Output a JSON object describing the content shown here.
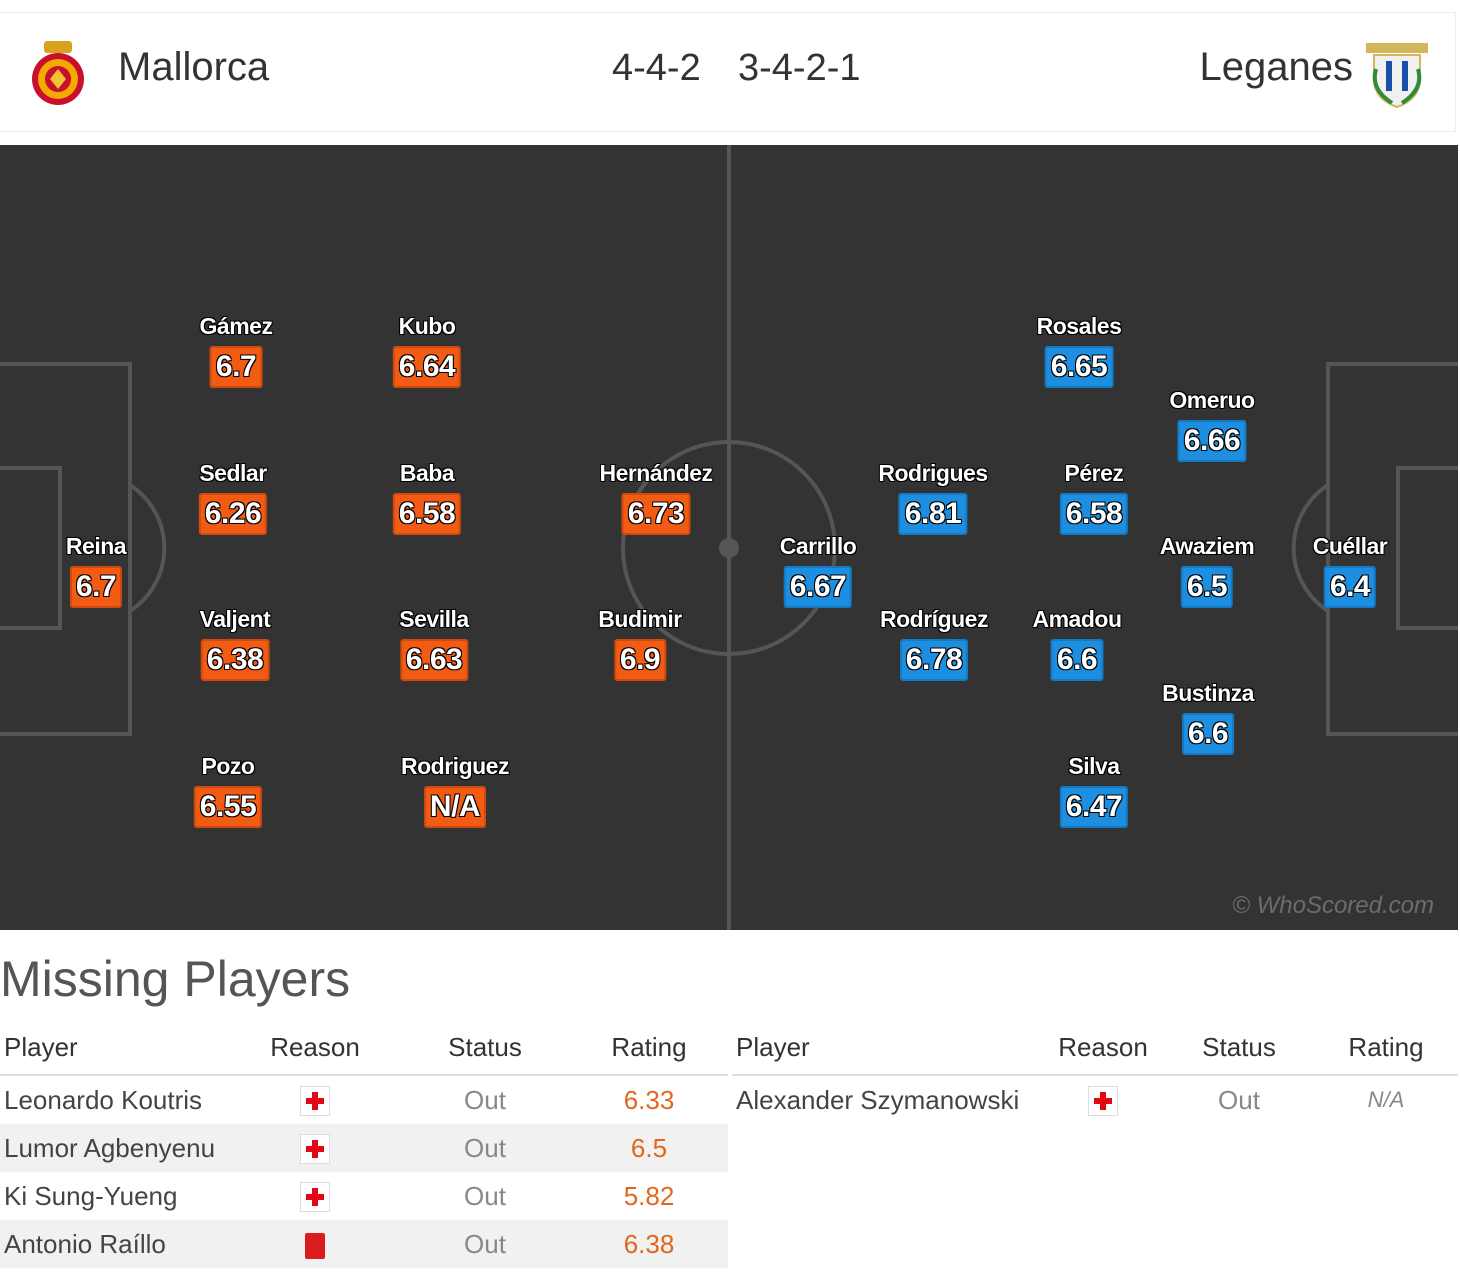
{
  "header": {
    "home_team": "Mallorca",
    "home_formation": "4-4-2",
    "away_formation": "3-4-2-1",
    "away_team": "Leganes"
  },
  "colors": {
    "home": "#f25b14",
    "away": "#1e8fe0",
    "pitch": "#333333"
  },
  "home_players": [
    {
      "name": "Gámez",
      "rating": "6.7"
    },
    {
      "name": "Kubo",
      "rating": "6.64"
    },
    {
      "name": "Sedlar",
      "rating": "6.26"
    },
    {
      "name": "Baba",
      "rating": "6.58"
    },
    {
      "name": "Hernández",
      "rating": "6.73"
    },
    {
      "name": "Reina",
      "rating": "6.7"
    },
    {
      "name": "Valjent",
      "rating": "6.38"
    },
    {
      "name": "Sevilla",
      "rating": "6.63"
    },
    {
      "name": "Budimir",
      "rating": "6.9"
    },
    {
      "name": "Pozo",
      "rating": "6.55"
    },
    {
      "name": "Rodriguez",
      "rating": "N/A"
    }
  ],
  "away_players": [
    {
      "name": "Rosales",
      "rating": "6.65"
    },
    {
      "name": "Omeruo",
      "rating": "6.66"
    },
    {
      "name": "Rodrigues",
      "rating": "6.81"
    },
    {
      "name": "Pérez",
      "rating": "6.58"
    },
    {
      "name": "Carrillo",
      "rating": "6.67"
    },
    {
      "name": "Awaziem",
      "rating": "6.5"
    },
    {
      "name": "Cuéllar",
      "rating": "6.4"
    },
    {
      "name": "Rodríguez",
      "rating": "6.78"
    },
    {
      "name": "Amadou",
      "rating": "6.6"
    },
    {
      "name": "Bustinza",
      "rating": "6.6"
    },
    {
      "name": "Silva",
      "rating": "6.47"
    }
  ],
  "watermark": "© WhoScored.com",
  "missing": {
    "title": "Missing Players",
    "headers": {
      "player": "Player",
      "reason": "Reason",
      "status": "Status",
      "rating": "Rating"
    },
    "home": [
      {
        "player": "Leonardo Koutris",
        "reason": "injury-icon",
        "status": "Out",
        "rating": "6.33"
      },
      {
        "player": "Lumor Agbenyenu",
        "reason": "injury-icon",
        "status": "Out",
        "rating": "6.5"
      },
      {
        "player": "Ki Sung-Yueng",
        "reason": "injury-icon",
        "status": "Out",
        "rating": "5.82"
      },
      {
        "player": "Antonio Raíllo",
        "reason": "red-card-icon",
        "status": "Out",
        "rating": "6.38"
      }
    ],
    "away": [
      {
        "player": "Alexander Szymanowski",
        "reason": "injury-icon",
        "status": "Out",
        "rating": "N/A"
      }
    ]
  }
}
